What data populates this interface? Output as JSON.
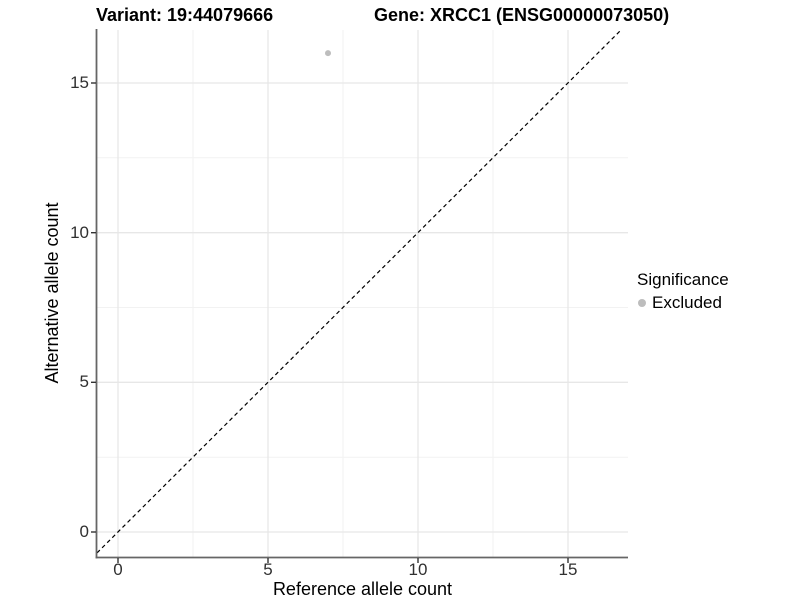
{
  "chart_data": {
    "type": "scatter",
    "titles": [
      "Variant: 19:44079666",
      "Gene: XRCC1 (ENSG00000073050)"
    ],
    "xlabel": "Reference allele count",
    "ylabel": "Alternative allele count",
    "x_ticks": [
      "0",
      "5",
      "10",
      "15"
    ],
    "y_ticks": [
      "0",
      "5",
      "10",
      "15"
    ],
    "xlim": [
      -0.7,
      17.0
    ],
    "ylim": [
      -0.85,
      16.8
    ],
    "grid": "major and minor gridlines, light gray, white panel background",
    "legend_position": "right, vertically centered",
    "points": [
      {
        "x": 7,
        "y": 16,
        "significance": "Excluded",
        "color": "#bdbdbd"
      }
    ],
    "reference_line": {
      "slope": 1,
      "intercept": 0,
      "style": "dashed",
      "color": "#000000"
    },
    "legend": {
      "title": "Significance",
      "entries": [
        {
          "label": "Excluded",
          "color": "#bdbdbd"
        }
      ]
    }
  }
}
